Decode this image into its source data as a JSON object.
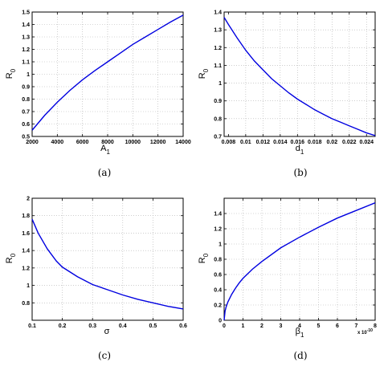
{
  "chart_data": [
    {
      "type": "line",
      "caption": "(a)",
      "xlabel": {
        "base": "A",
        "sub": "1"
      },
      "ylabel": {
        "base": "R",
        "sub": "0"
      },
      "xlim": [
        2000,
        14000
      ],
      "ylim": [
        0.5,
        1.5
      ],
      "xticks": [
        2000,
        4000,
        6000,
        8000,
        10000,
        12000,
        14000
      ],
      "yticks": [
        0.5,
        0.6,
        0.7,
        0.8,
        0.9,
        1,
        1.1,
        1.2,
        1.3,
        1.4,
        1.5
      ],
      "xtick_labels": [
        "2000",
        "4000",
        "6000",
        "8000",
        "10000",
        "12000",
        "14000"
      ],
      "ytick_labels": [
        "0.5",
        "0.6",
        "0.7",
        "0.8",
        "0.9",
        "1",
        "1.1",
        "1.2",
        "1.3",
        "1.4",
        "1.5"
      ],
      "grid": true,
      "color": "#0000e0",
      "series": [
        {
          "x": [
            2000,
            3000,
            4000,
            5000,
            6000,
            7000,
            8000,
            9000,
            10000,
            11000,
            12000,
            13000,
            14000
          ],
          "y": [
            0.55,
            0.67,
            0.775,
            0.87,
            0.955,
            1.03,
            1.1,
            1.17,
            1.24,
            1.3,
            1.36,
            1.42,
            1.475
          ]
        }
      ]
    },
    {
      "type": "line",
      "caption": "(b)",
      "xlabel": {
        "base": "d",
        "sub": "1"
      },
      "ylabel": {
        "base": "R",
        "sub": "0"
      },
      "xlim": [
        0.0075,
        0.025
      ],
      "ylim": [
        0.7,
        1.4
      ],
      "xticks": [
        0.008,
        0.01,
        0.012,
        0.014,
        0.016,
        0.018,
        0.02,
        0.022,
        0.024
      ],
      "yticks": [
        0.7,
        0.8,
        0.9,
        1,
        1.1,
        1.2,
        1.3,
        1.4
      ],
      "xtick_labels": [
        "0.008",
        "0.01",
        "0.012",
        "0.014",
        "0.016",
        "0.018",
        "0.02",
        "0.022",
        "0.024"
      ],
      "ytick_labels": [
        "0.7",
        "0.8",
        "0.9",
        "1",
        "1.1",
        "1.2",
        "1.3",
        "1.4"
      ],
      "grid": true,
      "color": "#0000e0",
      "series": [
        {
          "x": [
            0.0075,
            0.008,
            0.009,
            0.01,
            0.011,
            0.012,
            0.013,
            0.014,
            0.015,
            0.016,
            0.017,
            0.018,
            0.019,
            0.02,
            0.021,
            0.022,
            0.023,
            0.024,
            0.025
          ],
          "y": [
            1.37,
            1.33,
            1.255,
            1.185,
            1.125,
            1.075,
            1.025,
            0.985,
            0.945,
            0.91,
            0.88,
            0.85,
            0.825,
            0.8,
            0.78,
            0.76,
            0.74,
            0.72,
            0.705
          ]
        }
      ]
    },
    {
      "type": "line",
      "caption": "(c)",
      "xlabel": {
        "base": "σ",
        "sub": ""
      },
      "ylabel": {
        "base": "R",
        "sub": "0"
      },
      "xlim": [
        0.1,
        0.6
      ],
      "ylim": [
        0.6,
        2
      ],
      "xticks": [
        0.1,
        0.2,
        0.3,
        0.4,
        0.5,
        0.6
      ],
      "yticks": [
        0.8,
        1,
        1.2,
        1.4,
        1.6,
        1.8,
        2
      ],
      "xtick_labels": [
        "0.1",
        "0.2",
        "0.3",
        "0.4",
        "0.5",
        "0.6"
      ],
      "ytick_labels": [
        "0.8",
        "1",
        "1.2",
        "1.4",
        "1.6",
        "1.8",
        "2"
      ],
      "grid": true,
      "color": "#0000e0",
      "series": [
        {
          "x": [
            0.1,
            0.12,
            0.15,
            0.18,
            0.2,
            0.25,
            0.3,
            0.35,
            0.4,
            0.45,
            0.5,
            0.55,
            0.6
          ],
          "y": [
            1.76,
            1.6,
            1.42,
            1.28,
            1.21,
            1.1,
            1.01,
            0.95,
            0.89,
            0.84,
            0.8,
            0.76,
            0.73
          ]
        }
      ]
    },
    {
      "type": "line",
      "caption": "(d)",
      "xlabel": {
        "base": "β",
        "sub": "1"
      },
      "ylabel": {
        "base": "R",
        "sub": "0"
      },
      "xlim": [
        0,
        8
      ],
      "ylim": [
        0,
        1.6
      ],
      "xticks": [
        0,
        1,
        2,
        3,
        4,
        5,
        6,
        7,
        8
      ],
      "yticks": [
        0,
        0.2,
        0.4,
        0.6,
        0.8,
        1,
        1.2,
        1.4
      ],
      "xtick_labels": [
        "0",
        "1",
        "2",
        "3",
        "4",
        "5",
        "6",
        "7",
        "8"
      ],
      "ytick_labels": [
        "0",
        "0.2",
        "0.4",
        "0.6",
        "0.8",
        "1",
        "1.2",
        "1.4"
      ],
      "x_multiplier": "x 10",
      "x_multiplier_exp": "-10",
      "grid": true,
      "color": "#0000e0",
      "series": [
        {
          "x": [
            0,
            0.05,
            0.1,
            0.2,
            0.4,
            0.6,
            0.8,
            1,
            1.5,
            2,
            3,
            4,
            5,
            6,
            7,
            8
          ],
          "y": [
            0,
            0.12,
            0.17,
            0.24,
            0.34,
            0.42,
            0.49,
            0.55,
            0.67,
            0.77,
            0.95,
            1.09,
            1.22,
            1.34,
            1.44,
            1.54
          ]
        }
      ]
    }
  ]
}
